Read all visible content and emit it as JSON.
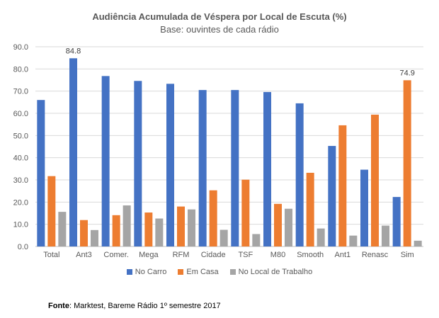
{
  "chart_data": {
    "type": "bar",
    "title": "Audiência Acumulada de Véspera por Local de Escuta (%)",
    "subtitle": "Base: ouvintes de cada rádio",
    "categories": [
      "Total",
      "Ant3",
      "Comer.",
      "Mega",
      "RFM",
      "Cidade",
      "TSF",
      "M80",
      "Smooth",
      "Ant1",
      "Renasc",
      "Sim"
    ],
    "series": [
      {
        "name": "No Carro",
        "color": "#4472C4",
        "values": [
          66.0,
          84.8,
          76.8,
          74.6,
          73.3,
          70.5,
          70.5,
          69.6,
          64.5,
          45.3,
          34.6,
          22.3
        ]
      },
      {
        "name": "Em Casa",
        "color": "#ED7D31",
        "values": [
          31.7,
          11.9,
          14.1,
          15.3,
          18.0,
          25.3,
          30.1,
          19.2,
          33.2,
          54.6,
          59.4,
          74.9
        ]
      },
      {
        "name": "No Local de Trabalho",
        "color": "#A5A5A5",
        "values": [
          15.6,
          7.4,
          18.5,
          12.6,
          16.7,
          7.5,
          5.6,
          17.0,
          8.1,
          4.9,
          9.4,
          2.6
        ]
      }
    ],
    "data_labels": [
      {
        "series": 0,
        "index": 1,
        "text": "84.8"
      },
      {
        "series": 1,
        "index": 11,
        "text": "74.9"
      }
    ],
    "ylim": [
      0,
      90
    ],
    "yticks": [
      "0.0",
      "10.0",
      "20.0",
      "30.0",
      "40.0",
      "50.0",
      "60.0",
      "70.0",
      "80.0",
      "90.0"
    ],
    "ytick_values": [
      0,
      10,
      20,
      30,
      40,
      50,
      60,
      70,
      80,
      90
    ],
    "grid": true,
    "legend_position": "bottom"
  },
  "source": {
    "label": "Fonte",
    "text": ": Marktest, Bareme Rádio 1º semestre 2017"
  }
}
